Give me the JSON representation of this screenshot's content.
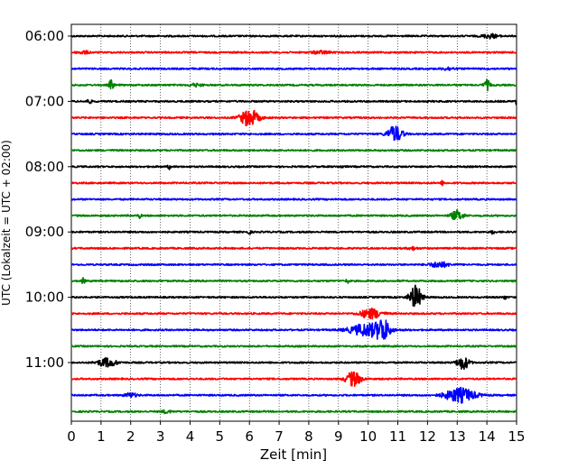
{
  "chart_data": {
    "type": "line",
    "chart_kind": "helicorder seismogram",
    "xlabel": "Zeit  [min]",
    "ylabel": "UTC (Lokalzeit = UTC + 02:00)",
    "xlim": [
      0,
      15
    ],
    "x_ticks": [
      "0",
      "1",
      "2",
      "3",
      "4",
      "5",
      "6",
      "7",
      "8",
      "9",
      "10",
      "11",
      "12",
      "13",
      "14",
      "15"
    ],
    "y_tick_labels": [
      "06:00",
      "07:00",
      "08:00",
      "09:00",
      "10:00",
      "11:00"
    ],
    "grid": "vertical dotted at each minute",
    "colors": [
      "#000000",
      "#ff0000",
      "#0000ff",
      "#008000"
    ],
    "rows": [
      {
        "start": "06:00",
        "events": [
          {
            "t": 14.1,
            "amp": 0.3,
            "dur": 0.5
          }
        ]
      },
      {
        "start": "06:15",
        "events": [
          {
            "t": 0.4,
            "amp": 0.2,
            "dur": 0.4
          },
          {
            "t": 8.4,
            "amp": 0.2,
            "dur": 0.6
          }
        ]
      },
      {
        "start": "06:30",
        "events": [
          {
            "t": 12.7,
            "amp": 0.2,
            "dur": 0.4
          }
        ]
      },
      {
        "start": "06:45",
        "events": [
          {
            "t": 1.35,
            "amp": 0.7,
            "dur": 0.15
          },
          {
            "t": 14.0,
            "amp": 0.7,
            "dur": 0.2
          },
          {
            "t": 4.2,
            "amp": 0.2,
            "dur": 0.4
          }
        ]
      },
      {
        "start": "07:00",
        "events": [
          {
            "t": 0.6,
            "amp": 0.3,
            "dur": 0.15
          },
          {
            "t": 15.0,
            "amp": 0.4,
            "dur": 0.1
          }
        ]
      },
      {
        "start": "07:15",
        "events": [
          {
            "t": 6.0,
            "amp": 1.2,
            "dur": 0.6
          }
        ]
      },
      {
        "start": "07:30",
        "events": [
          {
            "t": 10.9,
            "amp": 1.1,
            "dur": 0.5
          }
        ]
      },
      {
        "start": "07:45",
        "events": []
      },
      {
        "start": "08:00",
        "events": [
          {
            "t": 3.3,
            "amp": 0.3,
            "dur": 0.1
          },
          {
            "t": 9.1,
            "amp": 0.2,
            "dur": 0.1
          }
        ]
      },
      {
        "start": "08:15",
        "events": [
          {
            "t": 12.5,
            "amp": 0.3,
            "dur": 0.1
          }
        ]
      },
      {
        "start": "08:30",
        "events": []
      },
      {
        "start": "08:45",
        "events": [
          {
            "t": 2.3,
            "amp": 0.3,
            "dur": 0.1
          },
          {
            "t": 13.0,
            "amp": 0.7,
            "dur": 0.4
          }
        ]
      },
      {
        "start": "09:00",
        "events": [
          {
            "t": 6.0,
            "amp": 0.3,
            "dur": 0.1
          },
          {
            "t": 14.2,
            "amp": 0.3,
            "dur": 0.1
          }
        ]
      },
      {
        "start": "09:15",
        "events": [
          {
            "t": 11.5,
            "amp": 0.2,
            "dur": 0.3
          }
        ]
      },
      {
        "start": "09:30",
        "events": [
          {
            "t": 12.4,
            "amp": 0.4,
            "dur": 0.6
          }
        ]
      },
      {
        "start": "09:45",
        "events": [
          {
            "t": 0.4,
            "amp": 0.4,
            "dur": 0.1
          },
          {
            "t": 9.3,
            "amp": 0.3,
            "dur": 0.1
          }
        ]
      },
      {
        "start": "10:00",
        "events": [
          {
            "t": 11.6,
            "amp": 1.6,
            "dur": 0.4
          },
          {
            "t": 14.6,
            "amp": 0.3,
            "dur": 0.1
          }
        ]
      },
      {
        "start": "10:15",
        "events": [
          {
            "t": 10.1,
            "amp": 0.7,
            "dur": 0.7
          }
        ]
      },
      {
        "start": "10:30",
        "events": [
          {
            "t": 10.0,
            "amp": 0.9,
            "dur": 1.2
          },
          {
            "t": 10.5,
            "amp": 1.3,
            "dur": 0.4
          }
        ]
      },
      {
        "start": "10:45",
        "events": []
      },
      {
        "start": "11:00",
        "events": [
          {
            "t": 1.2,
            "amp": 0.6,
            "dur": 0.6
          },
          {
            "t": 13.2,
            "amp": 0.9,
            "dur": 0.4
          }
        ]
      },
      {
        "start": "11:15",
        "events": [
          {
            "t": 9.5,
            "amp": 1.0,
            "dur": 0.5
          }
        ]
      },
      {
        "start": "11:30",
        "events": [
          {
            "t": 2.0,
            "amp": 0.3,
            "dur": 0.4
          },
          {
            "t": 13.1,
            "amp": 1.0,
            "dur": 1.0
          }
        ]
      },
      {
        "start": "11:45",
        "events": [
          {
            "t": 3.2,
            "amp": 0.2,
            "dur": 0.3
          }
        ]
      }
    ]
  }
}
